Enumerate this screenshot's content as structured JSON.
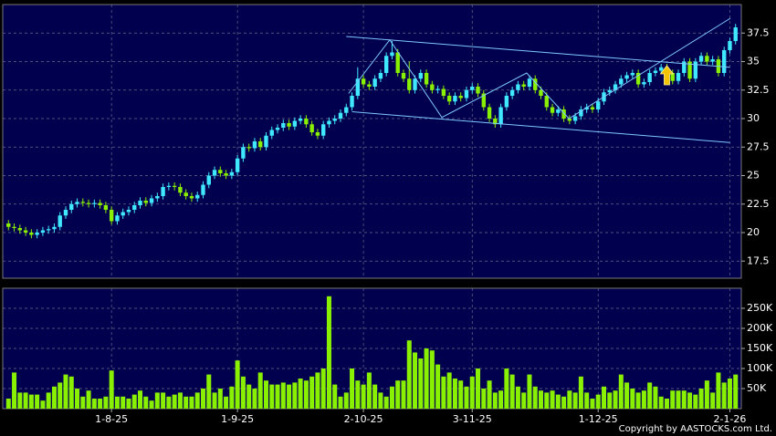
{
  "chart_data": [
    {
      "type": "candlestick",
      "up_color": "#3fe8ff",
      "down_color": "#88f000",
      "grid": true,
      "xlim": [
        -1,
        128
      ],
      "ylim": [
        16,
        40
      ],
      "yticks": [
        17.5,
        20,
        22.5,
        25,
        27.5,
        30,
        32.5,
        35,
        37.5
      ],
      "open": [
        20.8,
        20.5,
        20.4,
        20.2,
        20.0,
        19.8,
        20.0,
        20.2,
        20.3,
        20.5,
        21.5,
        22.0,
        22.5,
        22.7,
        22.6,
        22.5,
        22.6,
        22.4,
        22.0,
        21.0,
        21.5,
        21.8,
        22.0,
        22.4,
        22.8,
        22.6,
        23.0,
        23.2,
        24.0,
        24.1,
        24.0,
        23.5,
        23.2,
        23.0,
        23.3,
        24.2,
        25.0,
        25.5,
        25.2,
        25.0,
        25.3,
        26.5,
        27.5,
        27.4,
        28.0,
        27.5,
        28.5,
        29.0,
        29.2,
        29.6,
        29.3,
        29.8,
        30.0,
        29.5,
        28.8,
        28.5,
        29.5,
        29.8,
        30.0,
        30.5,
        31.0,
        32.0,
        33.5,
        33.0,
        32.8,
        33.5,
        34.0,
        35.5,
        35.8,
        34.0,
        33.5,
        32.5,
        33.5,
        34.0,
        33.0,
        32.5,
        32.6,
        32.0,
        31.5,
        32.0,
        31.8,
        32.5,
        32.8,
        32.2,
        31.0,
        30.0,
        29.5,
        31.0,
        32.0,
        32.5,
        33.0,
        32.8,
        33.5,
        32.5,
        32.0,
        31.0,
        30.5,
        30.8,
        30.0,
        29.8,
        30.2,
        30.8,
        31.0,
        30.8,
        31.5,
        32.3,
        32.5,
        33.0,
        33.5,
        33.8,
        34.0,
        33.0,
        33.2,
        34.0,
        34.2,
        34.5,
        34.0,
        33.3,
        34.0,
        35.0,
        33.5,
        35.0,
        35.5,
        35.0,
        35.2,
        34.0,
        36.0,
        36.8
      ],
      "high": [
        21.1,
        20.8,
        20.7,
        20.5,
        20.3,
        20.3,
        20.5,
        20.6,
        20.8,
        21.8,
        22.3,
        22.8,
        23.0,
        23.0,
        22.9,
        22.9,
        22.9,
        22.7,
        22.3,
        21.8,
        22.1,
        22.3,
        22.7,
        23.1,
        23.1,
        23.3,
        23.5,
        24.3,
        24.4,
        24.4,
        24.3,
        23.8,
        23.5,
        23.6,
        24.5,
        25.3,
        25.8,
        25.8,
        25.5,
        25.6,
        26.8,
        27.8,
        27.8,
        28.3,
        28.3,
        28.8,
        29.3,
        29.5,
        29.9,
        29.9,
        30.1,
        30.3,
        30.3,
        29.8,
        29.1,
        29.8,
        30.1,
        30.3,
        30.8,
        31.3,
        32.3,
        34.5,
        33.8,
        33.3,
        33.8,
        34.3,
        35.8,
        36.8,
        36.1,
        34.3,
        35.0,
        33.8,
        34.3,
        34.3,
        33.3,
        32.9,
        32.9,
        32.3,
        32.3,
        32.3,
        32.8,
        33.1,
        33.1,
        32.5,
        31.3,
        30.3,
        31.3,
        32.3,
        32.8,
        33.3,
        33.3,
        33.8,
        33.8,
        32.8,
        32.3,
        31.3,
        31.1,
        31.1,
        30.3,
        30.5,
        31.1,
        31.3,
        31.3,
        31.8,
        32.6,
        32.8,
        33.3,
        33.8,
        34.1,
        34.3,
        34.3,
        33.5,
        34.3,
        34.5,
        34.8,
        34.8,
        34.3,
        34.3,
        35.3,
        35.3,
        35.3,
        35.8,
        35.8,
        35.5,
        35.5,
        36.3,
        37.1,
        38.3
      ],
      "low": [
        20.2,
        20.1,
        19.9,
        19.7,
        19.5,
        19.5,
        19.7,
        19.9,
        20.0,
        20.2,
        21.2,
        21.7,
        22.2,
        22.3,
        22.2,
        22.2,
        22.1,
        21.7,
        20.7,
        20.7,
        21.2,
        21.5,
        21.7,
        22.1,
        22.3,
        22.3,
        22.7,
        22.9,
        23.7,
        23.7,
        23.2,
        22.9,
        22.7,
        22.7,
        23.0,
        23.9,
        24.7,
        24.9,
        24.7,
        24.7,
        25.0,
        26.2,
        27.1,
        27.1,
        27.2,
        27.2,
        28.2,
        28.7,
        28.9,
        29.0,
        29.0,
        29.5,
        29.2,
        28.5,
        28.2,
        28.2,
        29.2,
        29.5,
        29.7,
        30.2,
        30.7,
        31.7,
        32.7,
        32.5,
        32.5,
        33.2,
        33.7,
        35.2,
        33.7,
        33.2,
        32.2,
        32.2,
        33.2,
        32.7,
        32.2,
        32.2,
        31.7,
        31.2,
        31.2,
        31.5,
        31.5,
        32.2,
        31.9,
        30.7,
        29.7,
        29.2,
        29.2,
        30.7,
        31.7,
        32.2,
        32.5,
        32.5,
        32.2,
        31.7,
        30.7,
        30.2,
        30.2,
        29.7,
        29.5,
        29.5,
        29.9,
        30.5,
        30.5,
        30.5,
        31.2,
        32.0,
        32.2,
        32.7,
        33.2,
        33.5,
        32.7,
        32.7,
        32.9,
        33.7,
        33.9,
        33.7,
        33.0,
        33.0,
        33.7,
        33.2,
        33.2,
        34.7,
        34.7,
        34.7,
        33.7,
        33.7,
        35.7,
        36.5
      ],
      "close": [
        20.5,
        20.4,
        20.2,
        20.0,
        19.8,
        20.0,
        20.2,
        20.3,
        20.5,
        21.5,
        22.0,
        22.5,
        22.7,
        22.6,
        22.5,
        22.6,
        22.4,
        22.0,
        21.0,
        21.5,
        21.8,
        22.0,
        22.4,
        22.8,
        22.6,
        23.0,
        23.2,
        24.0,
        24.1,
        24.0,
        23.5,
        23.2,
        23.0,
        23.3,
        24.2,
        25.0,
        25.5,
        25.2,
        25.0,
        25.3,
        26.5,
        27.5,
        27.4,
        28.0,
        27.5,
        28.5,
        29.0,
        29.2,
        29.6,
        29.3,
        29.8,
        30.0,
        29.5,
        28.8,
        28.5,
        29.5,
        29.8,
        30.0,
        30.5,
        31.0,
        32.0,
        33.5,
        33.0,
        32.8,
        33.5,
        34.0,
        35.5,
        35.8,
        34.0,
        33.5,
        32.5,
        33.5,
        34.0,
        33.0,
        32.5,
        32.6,
        32.0,
        31.5,
        32.0,
        31.8,
        32.5,
        32.8,
        32.2,
        31.0,
        30.0,
        29.5,
        31.0,
        32.0,
        32.5,
        33.0,
        32.8,
        33.5,
        32.5,
        32.0,
        31.0,
        30.5,
        30.8,
        30.0,
        29.8,
        30.2,
        30.8,
        31.0,
        30.8,
        31.5,
        32.3,
        32.5,
        33.0,
        33.5,
        33.8,
        34.0,
        33.0,
        33.2,
        34.0,
        34.2,
        34.5,
        34.0,
        33.3,
        34.0,
        35.0,
        33.5,
        35.0,
        35.5,
        35.0,
        35.2,
        34.0,
        36.0,
        36.8,
        38.0
      ],
      "trend_lines": [
        {
          "color": "#7fc8ff",
          "x": [
            59,
            126
          ],
          "y": [
            37.2,
            34.5
          ]
        },
        {
          "color": "#7fc8ff",
          "x": [
            60,
            126
          ],
          "y": [
            30.6,
            27.9
          ]
        },
        {
          "color": "#7fc8ff",
          "x": [
            59.4,
            66.6,
            75.7,
            90.5,
            97.9,
            126.1
          ],
          "y": [
            32.2,
            36.9,
            30.1,
            34.0,
            30.0,
            38.8
          ]
        }
      ],
      "signal_arrow": {
        "x": 115,
        "y": 33.6,
        "color": "#f5c400"
      }
    },
    {
      "type": "bar",
      "color": "#88f000",
      "grid": true,
      "xlim": [
        -1,
        128
      ],
      "ylim": [
        0,
        300000
      ],
      "xticks": [
        {
          "value": 18,
          "label": "1-8-25"
        },
        {
          "value": 40,
          "label": "1-9-25"
        },
        {
          "value": 62,
          "label": "2-10-25"
        },
        {
          "value": 81,
          "label": "3-11-25"
        },
        {
          "value": 103,
          "label": "1-12-25"
        },
        {
          "value": 126,
          "label": "2-1-26"
        }
      ],
      "yticks": [
        {
          "value": 50000,
          "label": "50K"
        },
        {
          "value": 100000,
          "label": "100K"
        },
        {
          "value": 150000,
          "label": "150K"
        },
        {
          "value": 200000,
          "label": "200K"
        },
        {
          "value": 250000,
          "label": "250K"
        }
      ],
      "values": [
        25000,
        90000,
        40000,
        40000,
        35000,
        35000,
        20000,
        40000,
        55000,
        65000,
        85000,
        80000,
        50000,
        30000,
        45000,
        25000,
        25000,
        30000,
        95000,
        30000,
        30000,
        25000,
        35000,
        45000,
        30000,
        20000,
        40000,
        40000,
        30000,
        35000,
        40000,
        30000,
        30000,
        40000,
        50000,
        85000,
        40000,
        50000,
        30000,
        55000,
        120000,
        80000,
        60000,
        50000,
        90000,
        70000,
        60000,
        60000,
        65000,
        60000,
        65000,
        75000,
        70000,
        80000,
        90000,
        100000,
        280000,
        60000,
        30000,
        40000,
        100000,
        70000,
        60000,
        90000,
        60000,
        40000,
        30000,
        55000,
        70000,
        70000,
        170000,
        140000,
        125000,
        150000,
        145000,
        110000,
        80000,
        90000,
        75000,
        70000,
        55000,
        80000,
        100000,
        50000,
        70000,
        40000,
        45000,
        100000,
        85000,
        55000,
        40000,
        85000,
        55000,
        45000,
        40000,
        45000,
        35000,
        30000,
        45000,
        40000,
        80000,
        40000,
        25000,
        35000,
        55000,
        40000,
        45000,
        85000,
        65000,
        50000,
        40000,
        45000,
        65000,
        55000,
        30000,
        25000,
        45000,
        45000,
        45000,
        40000,
        35000,
        50000,
        70000,
        40000,
        90000,
        65000,
        75000,
        85000
      ],
      "footer": "Copyright by AASTOCKS.com Ltd."
    }
  ]
}
